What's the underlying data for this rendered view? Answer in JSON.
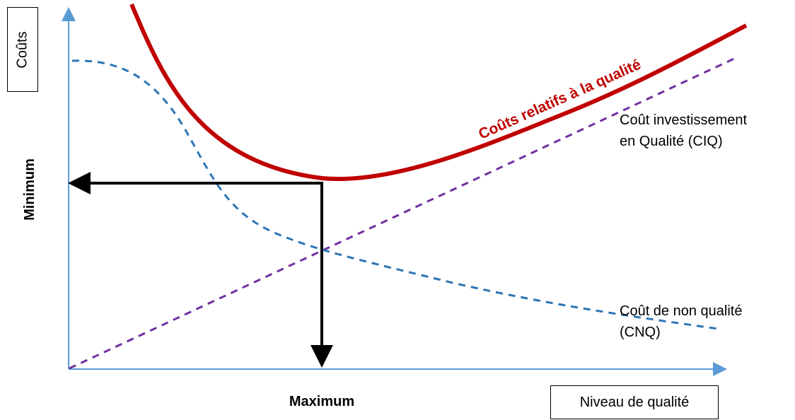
{
  "y_axis_box": "Coûts",
  "x_axis_box": "Niveau de qualité",
  "minimum_label": "Minimum",
  "maximum_label": "Maximum",
  "curve_total_label": "Coûts relatifs à la qualité",
  "curve_ciq_label_line1": "Coût investissement",
  "curve_ciq_label_line2": "en Qualité (CIQ)",
  "curve_cnq_label_line1": "Coût de non qualité",
  "curve_cnq_label_line2": "(CNQ)",
  "colors": {
    "axis": "#5b9bd5",
    "total_curve": "#c00000",
    "ciq_line": "#7030a0",
    "cnq_curve": "#2e75b6",
    "arrows": "#000000"
  }
}
